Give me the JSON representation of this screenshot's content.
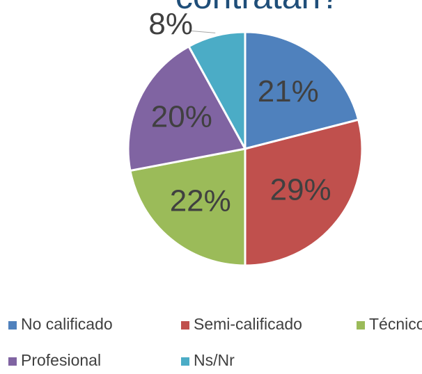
{
  "chart_data": {
    "type": "pie",
    "title": "contratan?",
    "categories": [
      "No calificado",
      "Semi-calificado",
      "Técnico",
      "Profesional",
      "Ns/Nr"
    ],
    "values": [
      21,
      29,
      22,
      20,
      8
    ],
    "value_labels": [
      "21%",
      "29%",
      "22%",
      "20%",
      "8%"
    ],
    "colors": [
      "#4f81bd",
      "#c0504d",
      "#9bbb59",
      "#8064a2",
      "#4bacc6"
    ],
    "legend": "bottom"
  }
}
